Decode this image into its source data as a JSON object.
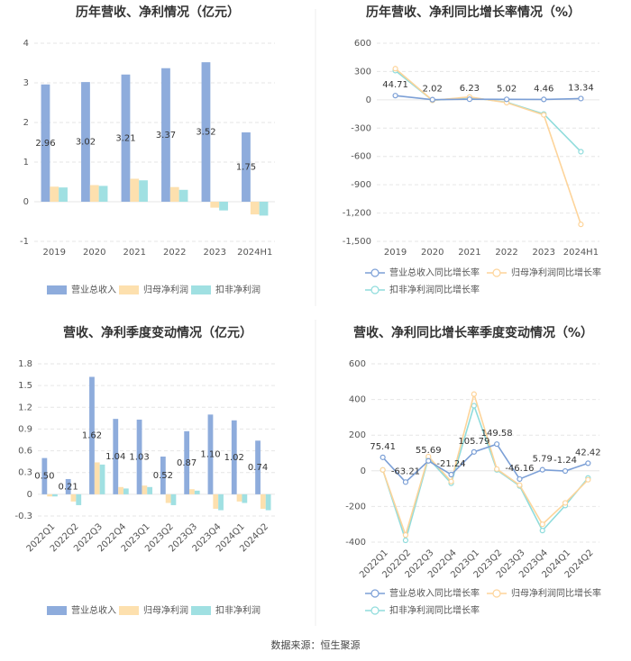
{
  "chart_data": [
    {
      "type": "bar",
      "title": "历年营收、净利情况（亿元）",
      "categories": [
        "2019",
        "2020",
        "2021",
        "2022",
        "2023",
        "2024H1"
      ],
      "series": [
        {
          "name": "营业总收入",
          "color": "#8eacdc",
          "values": [
            2.96,
            3.02,
            3.21,
            3.37,
            3.52,
            1.75
          ],
          "show_labels": true
        },
        {
          "name": "归母净利润",
          "color": "#fde0ae",
          "values": [
            0.38,
            0.42,
            0.58,
            0.37,
            -0.15,
            -0.32
          ],
          "show_labels": false
        },
        {
          "name": "扣非净利润",
          "color": "#a0e0e2",
          "values": [
            0.36,
            0.4,
            0.54,
            0.3,
            -0.22,
            -0.35
          ],
          "show_labels": false
        }
      ],
      "ylim": [
        -1,
        4
      ],
      "yticks": [
        -1,
        0,
        1,
        2,
        3,
        4
      ],
      "grid": true,
      "legend": "bottom"
    },
    {
      "type": "line",
      "title": "历年营收、净利同比增长率情况（%）",
      "categories": [
        "2019",
        "2020",
        "2021",
        "2022",
        "2023",
        "2024H1"
      ],
      "series": [
        {
          "name": "营业总收入同比增长率",
          "color": "#7b9fd6",
          "values": [
            44.71,
            2.02,
            6.23,
            5.02,
            4.46,
            13.34
          ],
          "show_labels": true
        },
        {
          "name": "归母净利润同比增长率",
          "color": "#fdd49a",
          "values": [
            330,
            -5,
            30,
            -30,
            -160,
            -1320
          ],
          "show_labels": false
        },
        {
          "name": "扣非净利润同比增长率",
          "color": "#8fdcdc",
          "values": [
            310,
            -5,
            25,
            -25,
            -150,
            -550
          ],
          "show_labels": false
        }
      ],
      "ylim": [
        -1500,
        600
      ],
      "yticks": [
        {
          "value": -1500,
          "label": "-1,500"
        },
        {
          "value": -1200,
          "label": "-1,200"
        },
        -900,
        -600,
        -300,
        0,
        300,
        600
      ],
      "grid": true,
      "legend": "bottom"
    },
    {
      "type": "bar",
      "title": "营收、净利季度变动情况（亿元）",
      "categories": [
        "2022Q1",
        "2022Q2",
        "2022Q3",
        "2022Q4",
        "2023Q1",
        "2023Q2",
        "2023Q3",
        "2023Q4",
        "2024Q1",
        "2024Q2"
      ],
      "series": [
        {
          "name": "营业总收入",
          "color": "#8eacdc",
          "values": [
            0.5,
            0.21,
            1.62,
            1.04,
            1.03,
            0.52,
            0.87,
            1.1,
            1.02,
            0.74
          ],
          "value_labels": [
            "0.50",
            "0.21",
            "1.62",
            "1.04",
            "1.03",
            "0.52",
            "0.87",
            "1.10",
            "1.02",
            "0.74"
          ],
          "show_labels": true
        },
        {
          "name": "归母净利润",
          "color": "#fde0ae",
          "values": [
            -0.03,
            -0.1,
            0.44,
            0.1,
            0.12,
            -0.12,
            0.07,
            -0.2,
            -0.1,
            -0.2
          ],
          "show_labels": false
        },
        {
          "name": "扣非净利润",
          "color": "#a0e0e2",
          "values": [
            -0.03,
            -0.15,
            0.41,
            0.08,
            0.1,
            -0.15,
            0.05,
            -0.22,
            -0.12,
            -0.22
          ],
          "show_labels": false
        }
      ],
      "ylim": [
        -0.3,
        1.8
      ],
      "yticks": [
        -0.3,
        0,
        0.3,
        0.6,
        0.9,
        1.2,
        1.5,
        1.8
      ],
      "grid": true,
      "legend": "bottom"
    },
    {
      "type": "line",
      "title": "营收、净利同比增长率季度变动情况（%）",
      "categories": [
        "2022Q1",
        "2022Q2",
        "2022Q3",
        "2022Q4",
        "2023Q1",
        "2023Q2",
        "2023Q3",
        "2023Q4",
        "2024Q1",
        "2024Q2"
      ],
      "series": [
        {
          "name": "营业总收入同比增长率",
          "color": "#7b9fd6",
          "values": [
            75.41,
            -63.21,
            55.69,
            -21.24,
            105.79,
            149.58,
            -46.16,
            5.79,
            -1.24,
            42.42
          ],
          "show_labels": true
        },
        {
          "name": "归母净利润同比增长率",
          "color": "#fdd49a",
          "values": [
            5,
            -360,
            80,
            -60,
            430,
            10,
            -80,
            -300,
            -180,
            -50
          ],
          "show_labels": false
        },
        {
          "name": "扣非净利润同比增长率",
          "color": "#8fdcdc",
          "values": [
            5,
            -390,
            70,
            -70,
            365,
            5,
            -85,
            -335,
            -195,
            -40
          ],
          "show_labels": false
        }
      ],
      "ylim": [
        -400,
        600
      ],
      "yticks": [
        -400,
        -200,
        0,
        200,
        400,
        600
      ],
      "grid": true,
      "legend": "bottom"
    }
  ],
  "source": "数据来源：恒生聚源"
}
